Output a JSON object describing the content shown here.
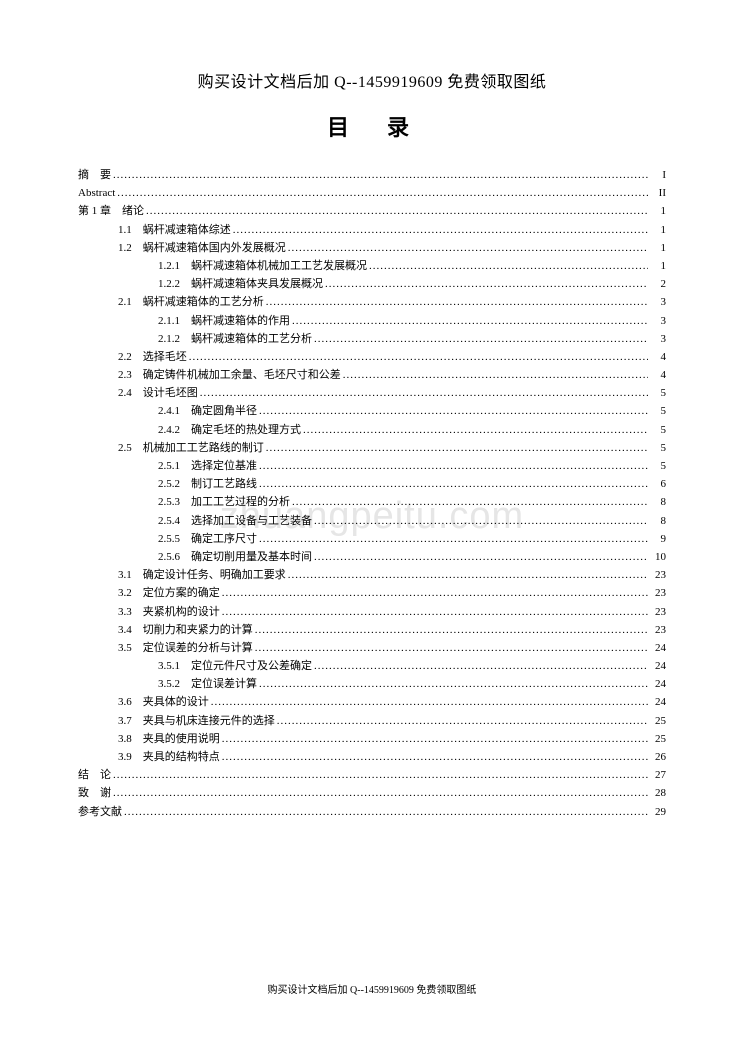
{
  "header": "购买设计文档后加 Q--1459919609 免费领取图纸",
  "title": "目　录",
  "watermark": "zhuangpeitu.com",
  "footer": "购买设计文档后加 Q--1459919609 免费领取图纸",
  "toc": [
    {
      "indent": 0,
      "label": "摘　要",
      "page": "I"
    },
    {
      "indent": 0,
      "label": "Abstract",
      "page": "II"
    },
    {
      "indent": 0,
      "label": "第 1 章　绪论",
      "page": "1"
    },
    {
      "indent": 1,
      "label": "1.1　蜗杆减速箱体综述",
      "page": "1"
    },
    {
      "indent": 1,
      "label": "1.2　蜗杆减速箱体国内外发展概况",
      "page": "1"
    },
    {
      "indent": 2,
      "label": "1.2.1　蜗杆减速箱体机械加工工艺发展概况",
      "page": "1"
    },
    {
      "indent": 2,
      "label": "1.2.2　蜗杆减速箱体夹具发展概况",
      "page": "2"
    },
    {
      "indent": 1,
      "label": "2.1　蜗杆减速箱体的工艺分析",
      "page": "3"
    },
    {
      "indent": 2,
      "label": "2.1.1　蜗杆减速箱体的作用",
      "page": "3"
    },
    {
      "indent": 2,
      "label": "2.1.2　蜗杆减速箱体的工艺分析",
      "page": "3"
    },
    {
      "indent": 1,
      "label": "2.2　选择毛坯",
      "page": "4"
    },
    {
      "indent": 1,
      "label": "2.3　确定铸件机械加工余量、毛坯尺寸和公差",
      "page": "4"
    },
    {
      "indent": 1,
      "label": "2.4　设计毛坯图",
      "page": "5"
    },
    {
      "indent": 2,
      "label": "2.4.1　确定圆角半径",
      "page": "5"
    },
    {
      "indent": 2,
      "label": "2.4.2　确定毛坯的热处理方式",
      "page": "5"
    },
    {
      "indent": 1,
      "label": "2.5　机械加工工艺路线的制订",
      "page": "5"
    },
    {
      "indent": 2,
      "label": "2.5.1　选择定位基准",
      "page": "5"
    },
    {
      "indent": 2,
      "label": "2.5.2　制订工艺路线",
      "page": "6"
    },
    {
      "indent": 2,
      "label": "2.5.3　加工工艺过程的分析",
      "page": "8"
    },
    {
      "indent": 2,
      "label": "2.5.4　选择加工设备与工艺装备",
      "page": "8"
    },
    {
      "indent": 2,
      "label": "2.5.5　确定工序尺寸",
      "page": "9"
    },
    {
      "indent": 2,
      "label": "2.5.6　确定切削用量及基本时间",
      "page": "10"
    },
    {
      "indent": 1,
      "label": "3.1　确定设计任务、明确加工要求",
      "page": "23"
    },
    {
      "indent": 1,
      "label": "3.2　定位方案的确定",
      "page": "23"
    },
    {
      "indent": 1,
      "label": "3.3　夹紧机构的设计",
      "page": "23"
    },
    {
      "indent": 1,
      "label": "3.4　切削力和夹紧力的计算",
      "page": "23"
    },
    {
      "indent": 1,
      "label": "3.5　定位误差的分析与计算",
      "page": "24"
    },
    {
      "indent": 2,
      "label": "3.5.1　定位元件尺寸及公差确定",
      "page": "24"
    },
    {
      "indent": 2,
      "label": "3.5.2　定位误差计算",
      "page": "24"
    },
    {
      "indent": 1,
      "label": "3.6　夹具体的设计",
      "page": "24"
    },
    {
      "indent": 1,
      "label": "3.7　夹具与机床连接元件的选择",
      "page": "25"
    },
    {
      "indent": 1,
      "label": "3.8　夹具的使用说明",
      "page": "25"
    },
    {
      "indent": 1,
      "label": "3.9　夹具的结构特点",
      "page": "26"
    },
    {
      "indent": 0,
      "label": "结　论",
      "page": "27"
    },
    {
      "indent": 0,
      "label": "致　谢",
      "page": "28"
    },
    {
      "indent": 0,
      "label": "参考文献",
      "page": "29"
    }
  ]
}
